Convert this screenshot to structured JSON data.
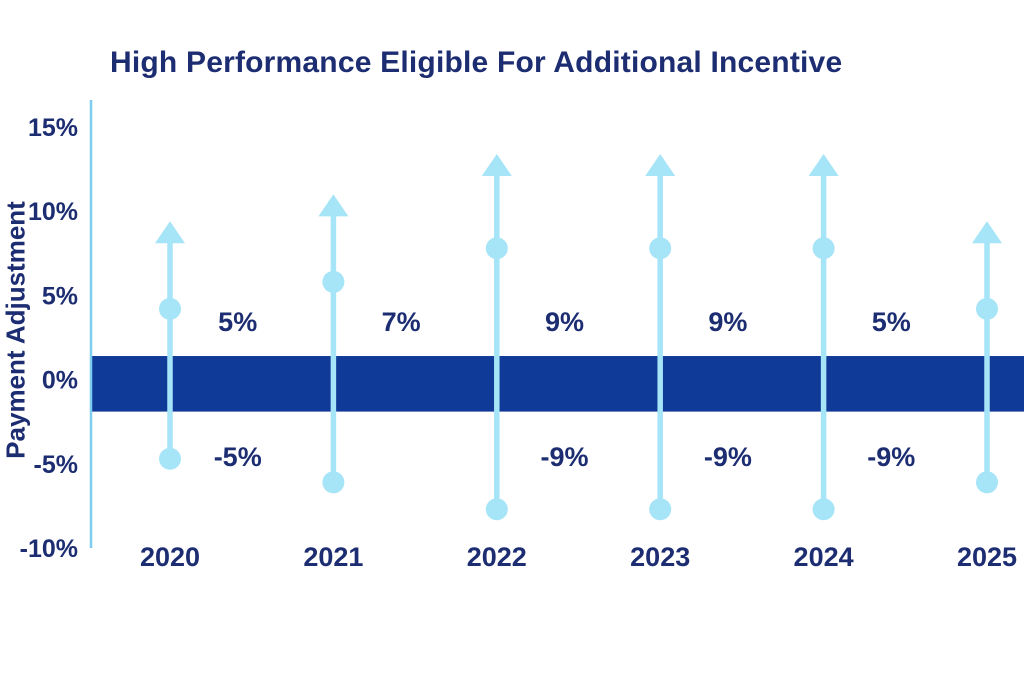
{
  "title": "High Performance Eligible For Additional Incentive",
  "colors": {
    "background": "#ffffff",
    "band": "#0f3a97",
    "stem": "#a6e4f8",
    "axis_line": "#7ccdf0",
    "text": "#1d2d72"
  },
  "chart_data": {
    "type": "scatter",
    "variant": "vertical-stem lollipop chart with upward arrows and a zero band",
    "title": "High Performance Eligible For Additional Incentive",
    "xlabel": "",
    "ylabel": "Payment Adjustment",
    "ylim": [
      -10,
      15
    ],
    "grid": false,
    "legend": "none",
    "yticks": [
      {
        "label": "15%",
        "value": 15
      },
      {
        "label": "10%",
        "value": 10
      },
      {
        "label": "5%",
        "value": 5
      },
      {
        "label": "0%",
        "value": 0
      },
      {
        "label": "-5%",
        "value": -5
      },
      {
        "label": "-10%",
        "value": -10
      }
    ],
    "zero_band": {
      "from": -1.9,
      "to": 1.4
    },
    "years": [
      {
        "label": "2020",
        "arrow_tip": 9.4,
        "upper_dot": 4.2,
        "lower_dot": -4.7
      },
      {
        "label": "2021",
        "arrow_tip": 11.0,
        "upper_dot": 5.8,
        "lower_dot": -6.1
      },
      {
        "label": "2022",
        "arrow_tip": 13.4,
        "upper_dot": 7.8,
        "lower_dot": -7.7
      },
      {
        "label": "2023",
        "arrow_tip": 13.4,
        "upper_dot": 7.8,
        "lower_dot": -7.7
      },
      {
        "label": "2024",
        "arrow_tip": 13.4,
        "upper_dot": 7.8,
        "lower_dot": -7.7
      },
      {
        "label": "2025",
        "arrow_tip": 9.4,
        "upper_dot": 4.2,
        "lower_dot": -6.1
      }
    ],
    "gap_labels": [
      {
        "between": [
          "2020",
          "2021"
        ],
        "top": "5%",
        "bottom": "-5%"
      },
      {
        "between": [
          "2021",
          "2022"
        ],
        "top": "7%",
        "bottom": null
      },
      {
        "between": [
          "2022",
          "2023"
        ],
        "top": "9%",
        "bottom": "-9%"
      },
      {
        "between": [
          "2023",
          "2024"
        ],
        "top": "9%",
        "bottom": "-9%"
      },
      {
        "between": [
          "2024",
          "2025"
        ],
        "top": "5%",
        "bottom": "-9%"
      }
    ]
  }
}
